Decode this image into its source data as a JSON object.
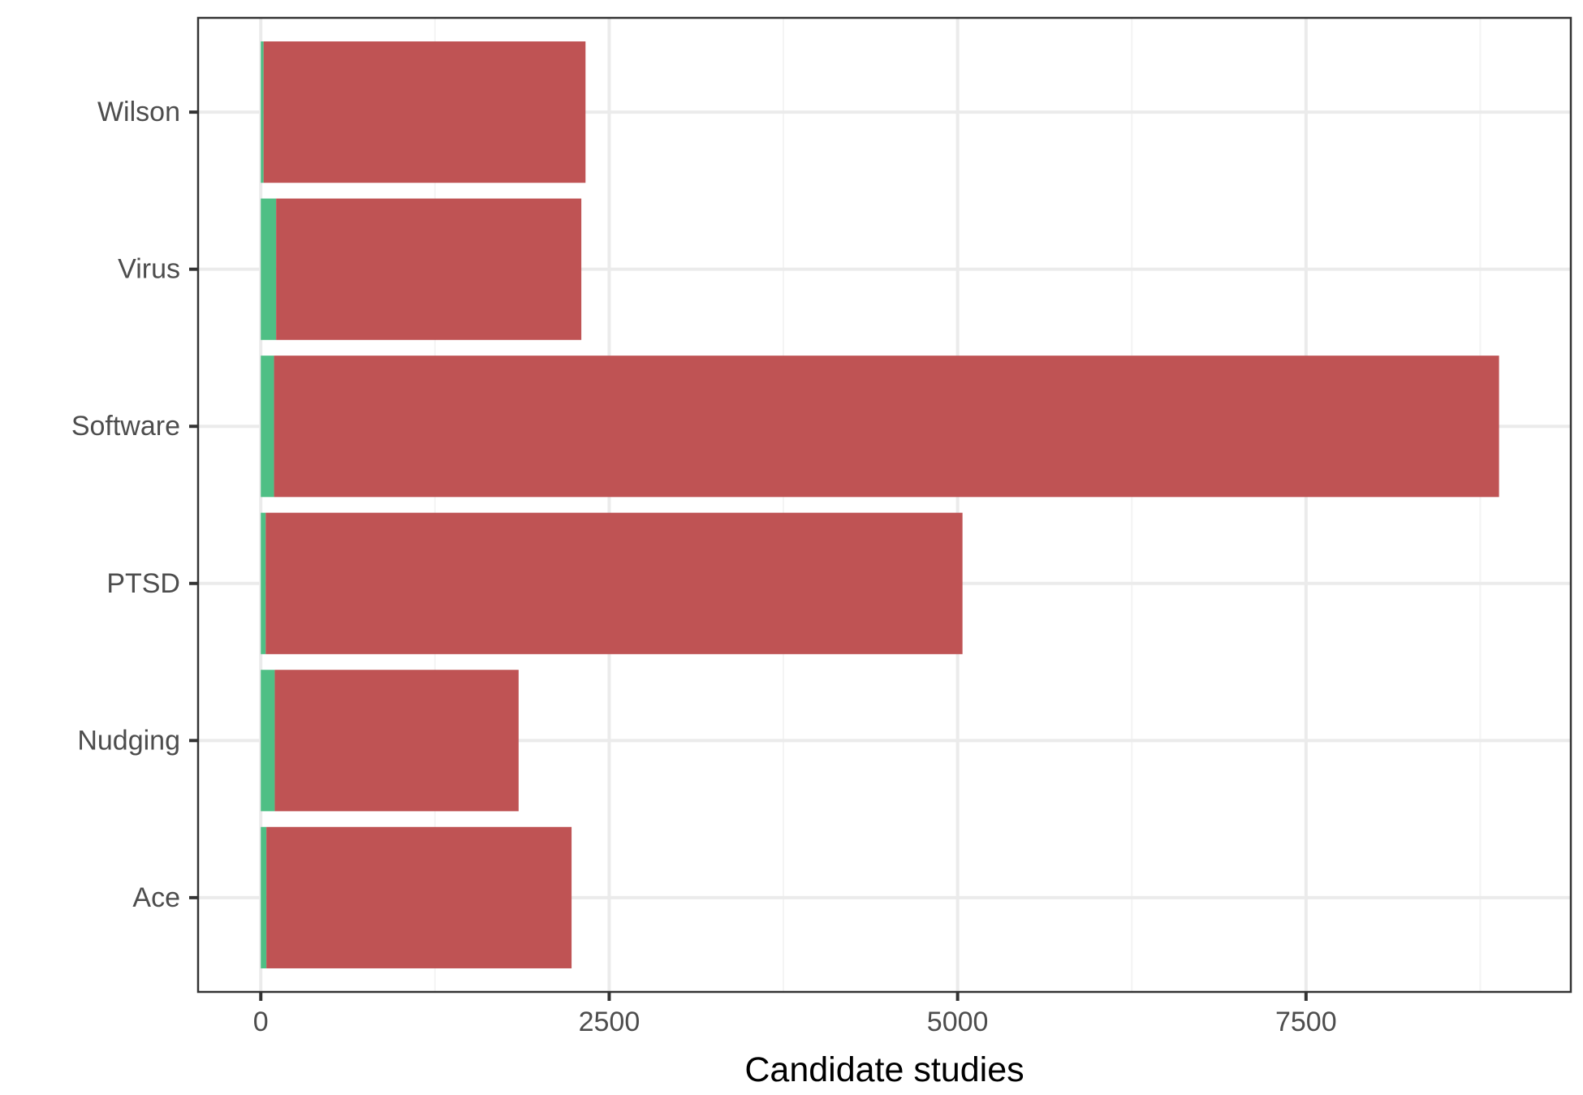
{
  "chart_data": {
    "type": "bar",
    "orientation": "horizontal",
    "stacked": true,
    "categories": [
      "Ace",
      "Nudging",
      "PTSD",
      "Software",
      "Virus",
      "Wilson"
    ],
    "series": [
      {
        "values": [
          40,
          100,
          35,
          95,
          110,
          20
        ],
        "color": "#4fbf85"
      },
      {
        "values": [
          2190,
          1750,
          5000,
          8790,
          2190,
          2310
        ],
        "color": "#bf5354"
      }
    ],
    "title": "",
    "xlabel": "Candidate studies",
    "ylabel": "",
    "xlim": [
      -450,
      9400
    ],
    "x_ticks": [
      0,
      2500,
      5000,
      7500
    ],
    "x_tick_labels": [
      "0",
      "2500",
      "5000",
      "7500"
    ],
    "x_minor_ticks": [
      1250,
      3750,
      6250,
      8750
    ],
    "grid": true,
    "legend": "none",
    "colors": {
      "panel_border": "#333333",
      "grid_major": "#ebebeb",
      "grid_minor": "#f4f4f4",
      "tick_mark": "#333333",
      "tick_text": "#4d4d4d",
      "axis_title": "#000000"
    }
  }
}
